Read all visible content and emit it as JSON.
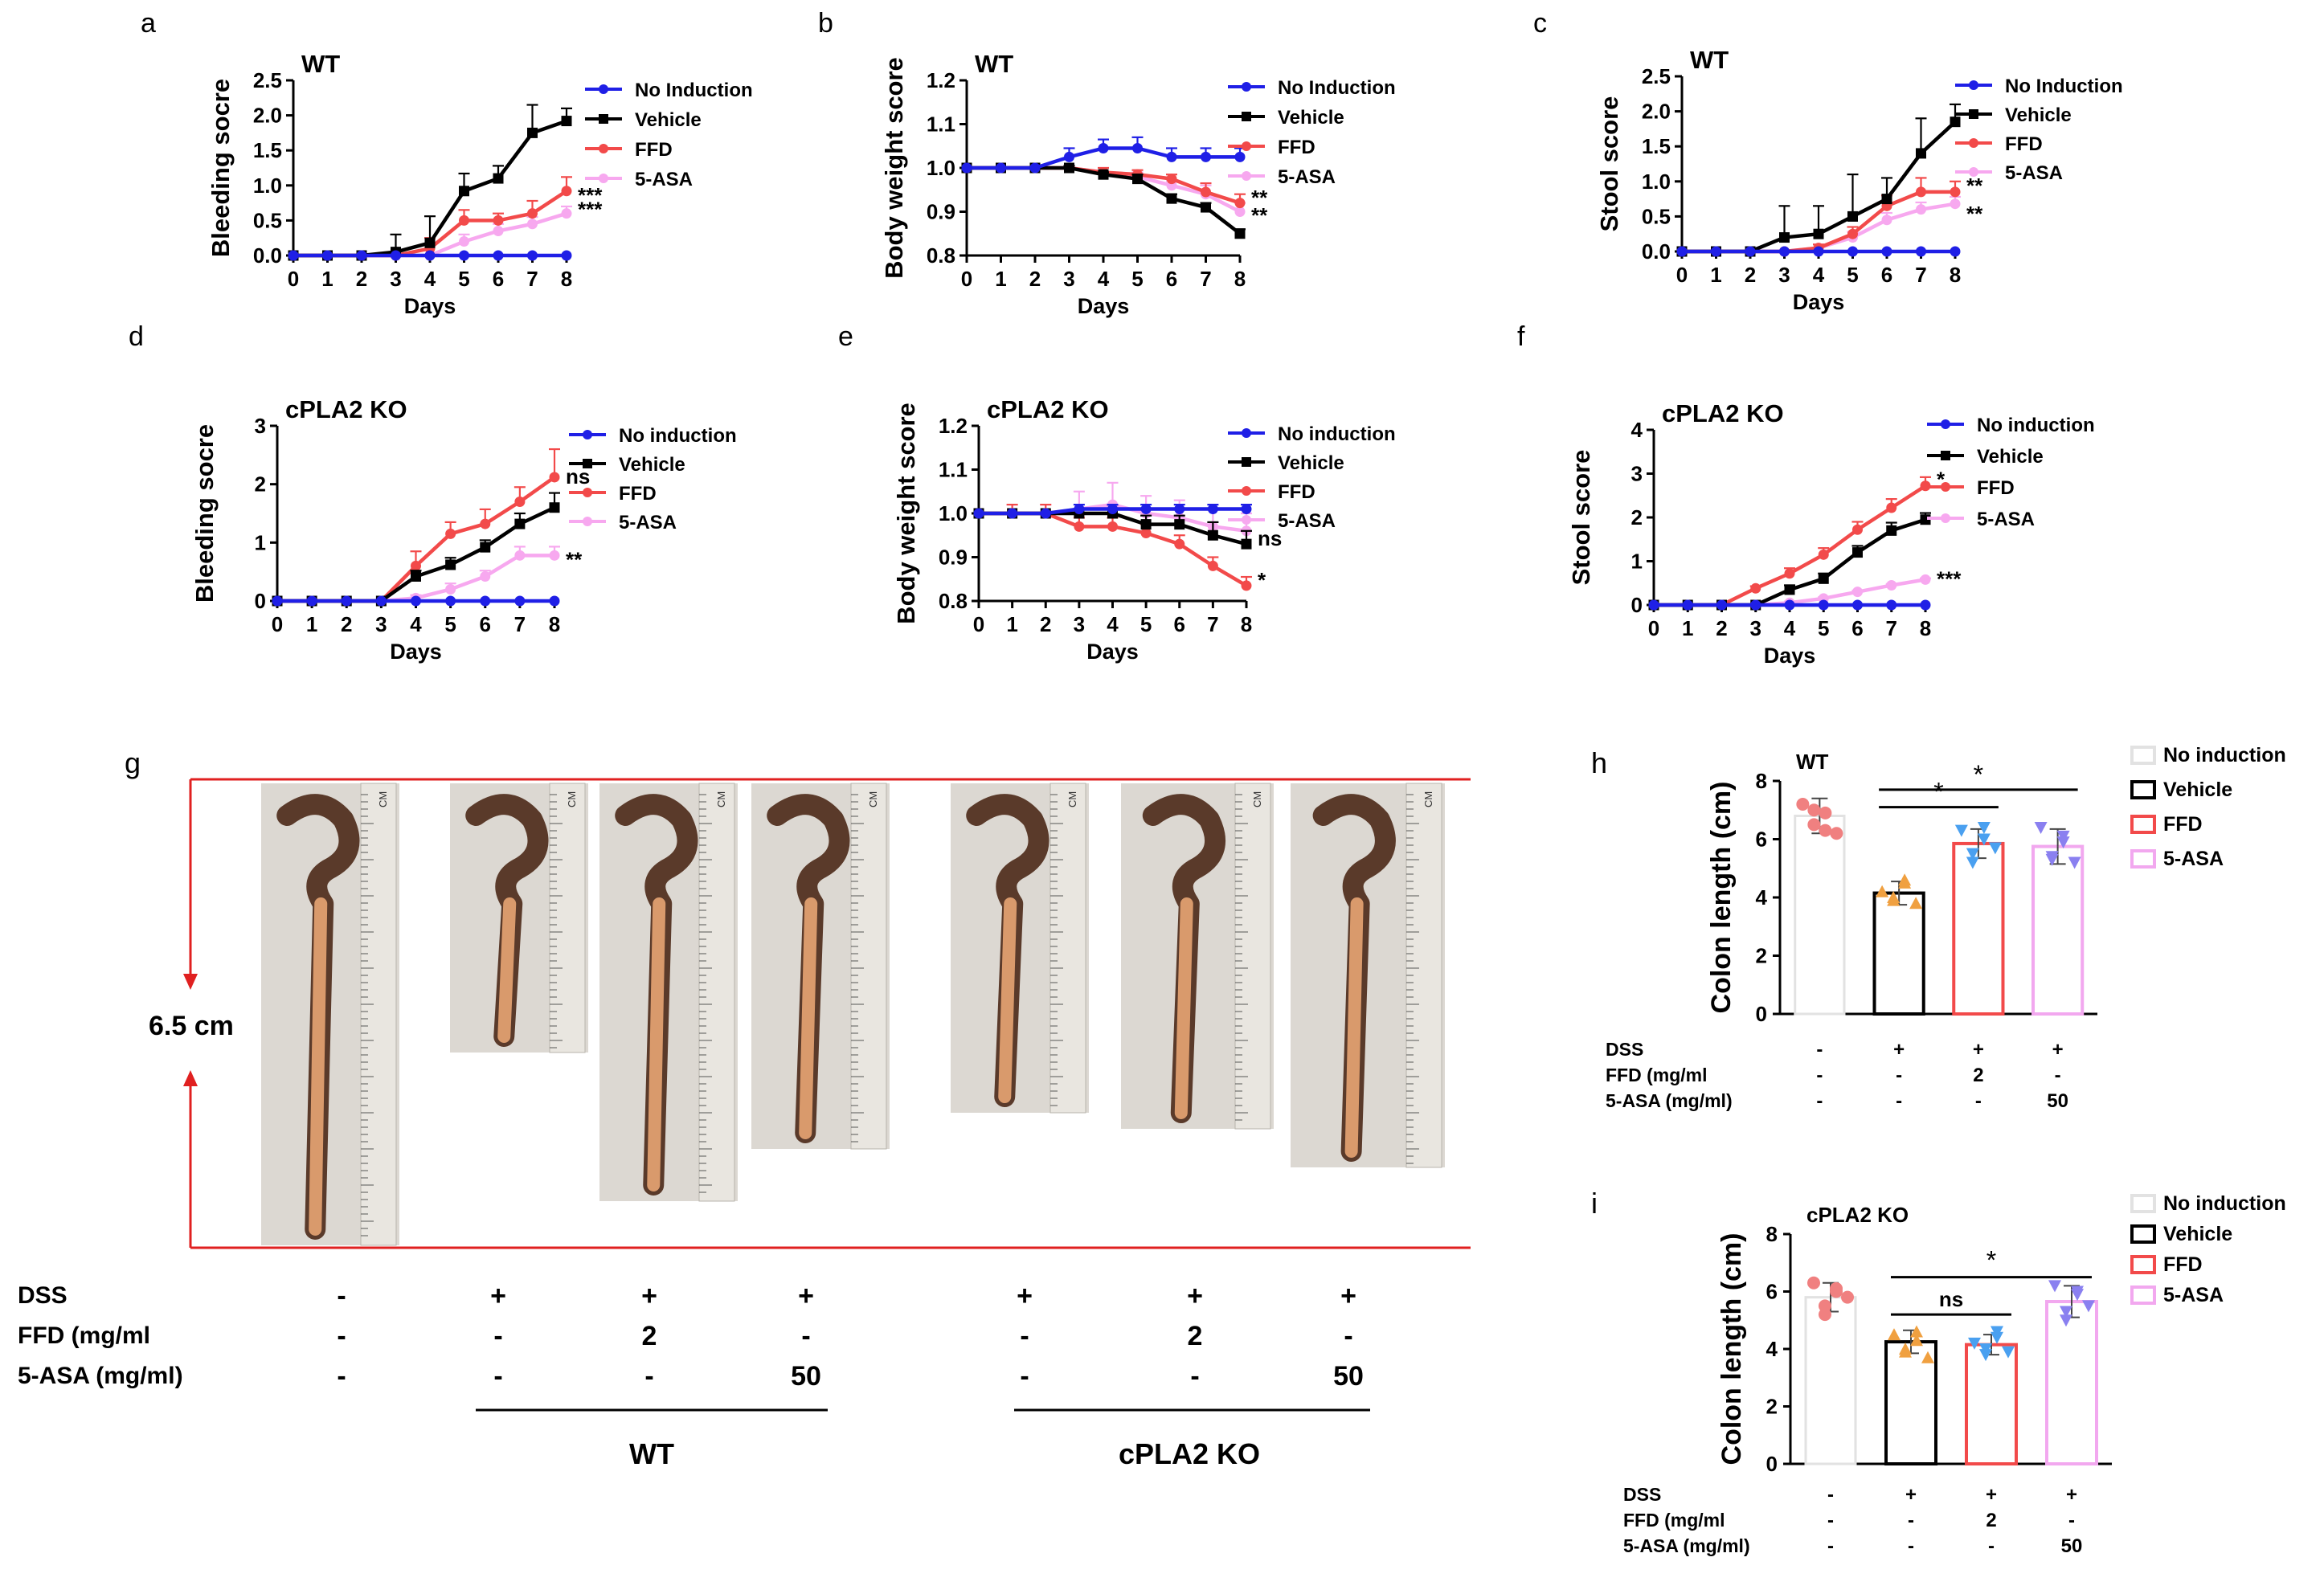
{
  "colors": {
    "no_induction": "#1f1fe6",
    "vehicle": "#000000",
    "ffd": "#f24a4a",
    "asa": "#f7a8ef",
    "red_guide": "#e02020",
    "bar_no_induction": "#e2e2e2",
    "bar_vehicle": "#000000",
    "bar_ffd": "#f24a4a",
    "bar_asa": "#f2a8ef",
    "dot_no_induction": "#f08080",
    "dot_vehicle": "#f0a040",
    "dot_ffd": "#4aa0f0",
    "dot_asa": "#8a80f0"
  },
  "chart_data": [
    {
      "panel": "a",
      "type": "line",
      "title": "WT",
      "xlabel": "Days",
      "ylabel": "Bleeding socre",
      "x": [
        0,
        1,
        2,
        3,
        4,
        5,
        6,
        7,
        8
      ],
      "xticks": [
        "0",
        "1",
        "2",
        "3",
        "4",
        "5",
        "6",
        "7",
        "8"
      ],
      "ylim": [
        0,
        2.5
      ],
      "yticks": [
        "0.0",
        "0.5",
        "1.0",
        "1.5",
        "2.0",
        "2.5"
      ],
      "series": [
        {
          "name": "No Induction",
          "color_key": "no_induction",
          "values": [
            0,
            0,
            0,
            0,
            0,
            0,
            0,
            0,
            0
          ],
          "err": [
            0,
            0,
            0,
            0,
            0,
            0,
            0,
            0,
            0
          ]
        },
        {
          "name": "Vehicle",
          "color_key": "vehicle",
          "values": [
            0,
            0,
            0,
            0.05,
            0.18,
            0.92,
            1.1,
            1.75,
            1.92
          ],
          "err": [
            0,
            0,
            0,
            0.25,
            0.38,
            0.25,
            0.18,
            0.4,
            0.18
          ]
        },
        {
          "name": "FFD",
          "color_key": "ffd",
          "values": [
            0,
            0,
            0,
            0,
            0.1,
            0.5,
            0.5,
            0.6,
            0.92
          ],
          "err": [
            0,
            0,
            0,
            0,
            0.15,
            0.15,
            0.1,
            0.18,
            0.2
          ]
        },
        {
          "name": "5-ASA",
          "color_key": "asa",
          "values": [
            0,
            0,
            0,
            0,
            0,
            0.2,
            0.35,
            0.45,
            0.6
          ],
          "err": [
            0,
            0,
            0,
            0,
            0,
            0.1,
            0.1,
            0.1,
            0.1
          ]
        }
      ],
      "annotations": [
        "***",
        "***"
      ]
    },
    {
      "panel": "b",
      "type": "line",
      "title": "WT",
      "xlabel": "Days",
      "ylabel": "Body weight score",
      "x": [
        0,
        1,
        2,
        3,
        4,
        5,
        6,
        7,
        8
      ],
      "xticks": [
        "0",
        "1",
        "2",
        "3",
        "4",
        "5",
        "6",
        "7",
        "8"
      ],
      "ylim": [
        0.8,
        1.2
      ],
      "yticks": [
        "0.8",
        "0.9",
        "1.0",
        "1.1",
        "1.2"
      ],
      "series": [
        {
          "name": "No Induction",
          "color_key": "no_induction",
          "values": [
            1.0,
            1.0,
            1.0,
            1.025,
            1.045,
            1.045,
            1.025,
            1.025,
            1.025
          ],
          "err": [
            0,
            0,
            0,
            0.02,
            0.02,
            0.025,
            0.02,
            0.02,
            0.02
          ]
        },
        {
          "name": "Vehicle",
          "color_key": "vehicle",
          "values": [
            1.0,
            1.0,
            1.0,
            1.0,
            0.985,
            0.975,
            0.93,
            0.91,
            0.85
          ],
          "err": [
            0,
            0,
            0,
            0.005,
            0.005,
            0.01,
            0.01,
            0.01,
            0.01
          ]
        },
        {
          "name": "FFD",
          "color_key": "ffd",
          "values": [
            1.0,
            1.0,
            1.0,
            1.0,
            0.99,
            0.985,
            0.975,
            0.945,
            0.92
          ],
          "err": [
            0,
            0,
            0,
            0.005,
            0.01,
            0.01,
            0.01,
            0.02,
            0.02
          ]
        },
        {
          "name": "5-ASA",
          "color_key": "asa",
          "values": [
            1.0,
            1.0,
            1.0,
            1.0,
            0.99,
            0.98,
            0.96,
            0.94,
            0.9
          ],
          "err": [
            0,
            0,
            0,
            0.005,
            0.01,
            0.01,
            0.01,
            0.02,
            0.02
          ]
        }
      ],
      "annotations": [
        "**",
        "**"
      ]
    },
    {
      "panel": "c",
      "type": "line",
      "title": "WT",
      "xlabel": "Days",
      "ylabel": "Stool score",
      "x": [
        0,
        1,
        2,
        3,
        4,
        5,
        6,
        7,
        8
      ],
      "xticks": [
        "0",
        "1",
        "2",
        "3",
        "4",
        "5",
        "6",
        "7",
        "8"
      ],
      "ylim": [
        0,
        2.5
      ],
      "yticks": [
        "0.0",
        "0.5",
        "1.0",
        "1.5",
        "2.0",
        "2.5"
      ],
      "series": [
        {
          "name": "No Induction",
          "color_key": "no_induction",
          "values": [
            0,
            0,
            0,
            0,
            0,
            0,
            0,
            0,
            0
          ],
          "err": [
            0,
            0,
            0,
            0,
            0,
            0,
            0,
            0,
            0
          ]
        },
        {
          "name": "Vehicle",
          "color_key": "vehicle",
          "values": [
            0,
            0,
            0,
            0.2,
            0.25,
            0.5,
            0.75,
            1.4,
            1.85
          ],
          "err": [
            0,
            0,
            0,
            0.45,
            0.4,
            0.6,
            0.3,
            0.5,
            0.25
          ]
        },
        {
          "name": "FFD",
          "color_key": "ffd",
          "values": [
            0,
            0,
            0,
            0,
            0.05,
            0.25,
            0.65,
            0.85,
            0.85
          ],
          "err": [
            0,
            0,
            0,
            0,
            0.05,
            0.1,
            0.15,
            0.2,
            0.15
          ]
        },
        {
          "name": "5-ASA",
          "color_key": "asa",
          "values": [
            0,
            0,
            0,
            0,
            0.05,
            0.2,
            0.45,
            0.6,
            0.68
          ],
          "err": [
            0,
            0,
            0,
            0,
            0.05,
            0.08,
            0.1,
            0.1,
            0.1
          ]
        }
      ],
      "annotations": [
        "**",
        "**"
      ]
    },
    {
      "panel": "d",
      "type": "line",
      "title": "cPLA2 KO",
      "xlabel": "Days",
      "ylabel": "Bleeding socre",
      "x": [
        0,
        1,
        2,
        3,
        4,
        5,
        6,
        7,
        8
      ],
      "xticks": [
        "0",
        "1",
        "2",
        "3",
        "4",
        "5",
        "6",
        "7",
        "8"
      ],
      "ylim": [
        0,
        3
      ],
      "yticks": [
        "0",
        "1",
        "2",
        "3"
      ],
      "series": [
        {
          "name": "No induction",
          "color_key": "no_induction",
          "values": [
            0,
            0,
            0,
            0,
            0,
            0,
            0,
            0,
            0
          ],
          "err": [
            0,
            0,
            0,
            0,
            0,
            0,
            0,
            0,
            0
          ]
        },
        {
          "name": "Vehicle",
          "color_key": "vehicle",
          "values": [
            0,
            0,
            0,
            0,
            0.42,
            0.62,
            0.92,
            1.32,
            1.6
          ],
          "err": [
            0,
            0,
            0,
            0,
            0.1,
            0.12,
            0.12,
            0.18,
            0.25
          ]
        },
        {
          "name": "FFD",
          "color_key": "ffd",
          "values": [
            0,
            0,
            0,
            0,
            0.6,
            1.15,
            1.32,
            1.7,
            2.12
          ],
          "err": [
            0,
            0,
            0,
            0,
            0.25,
            0.2,
            0.25,
            0.25,
            0.48
          ]
        },
        {
          "name": "5-ASA",
          "color_key": "asa",
          "values": [
            0,
            0,
            0,
            0,
            0.05,
            0.2,
            0.42,
            0.78,
            0.78
          ],
          "err": [
            0,
            0,
            0,
            0,
            0.05,
            0.1,
            0.1,
            0.15,
            0.15
          ]
        }
      ],
      "annotations": [
        "ns",
        "**"
      ]
    },
    {
      "panel": "e",
      "type": "line",
      "title": "cPLA2 KO",
      "xlabel": "Days",
      "ylabel": "Body weight score",
      "x": [
        0,
        1,
        2,
        3,
        4,
        5,
        6,
        7,
        8
      ],
      "xticks": [
        "0",
        "1",
        "2",
        "3",
        "4",
        "5",
        "6",
        "7",
        "8"
      ],
      "ylim": [
        0.8,
        1.2
      ],
      "yticks": [
        "0.8",
        "0.9",
        "1.0",
        "1.1",
        "1.2"
      ],
      "series": [
        {
          "name": "No induction",
          "color_key": "no_induction",
          "values": [
            1.0,
            1.0,
            1.0,
            1.01,
            1.01,
            1.01,
            1.01,
            1.01,
            1.01
          ],
          "err": [
            0,
            0,
            0,
            0.01,
            0.01,
            0.01,
            0.01,
            0.01,
            0.01
          ]
        },
        {
          "name": "Vehicle",
          "color_key": "vehicle",
          "values": [
            1.0,
            1.0,
            1.0,
            1.0,
            1.0,
            0.975,
            0.975,
            0.95,
            0.93
          ],
          "err": [
            0,
            0,
            0,
            0.01,
            0.02,
            0.02,
            0.02,
            0.03,
            0.03
          ]
        },
        {
          "name": "FFD",
          "color_key": "ffd",
          "values": [
            1.0,
            1.0,
            1.0,
            0.97,
            0.97,
            0.955,
            0.93,
            0.88,
            0.835
          ],
          "err": [
            0,
            0.02,
            0.02,
            0.02,
            0.02,
            0.02,
            0.02,
            0.02,
            0.02
          ]
        },
        {
          "name": "5-ASA",
          "color_key": "asa",
          "values": [
            1.0,
            1.0,
            1.0,
            1.01,
            1.02,
            1.0,
            0.99,
            0.97,
            0.96
          ],
          "err": [
            0,
            0.02,
            0.02,
            0.04,
            0.05,
            0.04,
            0.04,
            0.04,
            0.04
          ]
        }
      ],
      "annotations": [
        "ns",
        "*"
      ]
    },
    {
      "panel": "f",
      "type": "line",
      "title": "cPLA2 KO",
      "xlabel": "Days",
      "ylabel": "Stool score",
      "x": [
        0,
        1,
        2,
        3,
        4,
        5,
        6,
        7,
        8
      ],
      "xticks": [
        "0",
        "1",
        "2",
        "3",
        "4",
        "5",
        "6",
        "7",
        "8"
      ],
      "ylim": [
        0,
        4
      ],
      "yticks": [
        "0",
        "1",
        "2",
        "3",
        "4"
      ],
      "series": [
        {
          "name": "No induction",
          "color_key": "no_induction",
          "values": [
            0,
            0,
            0,
            0,
            0,
            0,
            0,
            0,
            0
          ],
          "err": [
            0,
            0,
            0,
            0,
            0,
            0,
            0,
            0,
            0
          ]
        },
        {
          "name": "Vehicle",
          "color_key": "vehicle",
          "values": [
            0,
            0,
            0,
            0,
            0.35,
            0.6,
            1.2,
            1.7,
            1.95
          ],
          "err": [
            0,
            0,
            0,
            0,
            0.1,
            0.12,
            0.15,
            0.18,
            0.15
          ]
        },
        {
          "name": "FFD",
          "color_key": "ffd",
          "values": [
            0,
            0,
            0,
            0.38,
            0.72,
            1.15,
            1.72,
            2.22,
            2.72
          ],
          "err": [
            0,
            0,
            0,
            0.05,
            0.12,
            0.15,
            0.18,
            0.2,
            0.2
          ]
        },
        {
          "name": "5-ASA",
          "color_key": "asa",
          "values": [
            0,
            0,
            0,
            0,
            0.05,
            0.15,
            0.3,
            0.45,
            0.58
          ],
          "err": [
            0,
            0,
            0,
            0,
            0.03,
            0.03,
            0.03,
            0.03,
            0.03
          ]
        }
      ],
      "annotations": [
        "*",
        "***"
      ]
    },
    {
      "panel": "h",
      "type": "bar",
      "title": "WT",
      "ylabel": "Colon length (cm)",
      "categories": [
        "No induction",
        "Vehicle",
        "FFD",
        "5-ASA"
      ],
      "values": [
        6.8,
        4.15,
        5.85,
        5.75
      ],
      "err": [
        0.6,
        0.4,
        0.5,
        0.6
      ],
      "points": [
        [
          7.2,
          6.5,
          6.3,
          7.0,
          6.9,
          6.2
        ],
        [
          4.2,
          3.9,
          4.5,
          4.0,
          4.6,
          3.8
        ],
        [
          6.3,
          5.5,
          6.0,
          5.2,
          6.4,
          5.7
        ],
        [
          6.4,
          5.3,
          5.9,
          5.4,
          6.1,
          5.2
        ]
      ],
      "ylim": [
        0,
        8
      ],
      "yticks": [
        "0",
        "2",
        "4",
        "6",
        "8"
      ],
      "significance": [
        "*",
        "*"
      ],
      "conditions": [
        {
          "label": "DSS",
          "values": [
            "-",
            "+",
            "+",
            "+"
          ]
        },
        {
          "label": "FFD (mg/ml",
          "values": [
            "-",
            "-",
            "2",
            "-"
          ]
        },
        {
          "label": "5-ASA (mg/ml)",
          "values": [
            "-",
            "-",
            "-",
            "50"
          ]
        }
      ]
    },
    {
      "panel": "i",
      "type": "bar",
      "title": "cPLA2 KO",
      "ylabel": "Colon length (cm)",
      "categories": [
        "No induction",
        "Vehicle",
        "FFD",
        "5-ASA"
      ],
      "values": [
        5.8,
        4.25,
        4.15,
        5.65
      ],
      "err": [
        0.5,
        0.4,
        0.35,
        0.55
      ],
      "points": [
        [
          6.3,
          5.5,
          6.0,
          5.2,
          6.1,
          5.8
        ],
        [
          4.5,
          3.9,
          4.6,
          4.0,
          4.3,
          3.7
        ],
        [
          4.2,
          3.8,
          4.6,
          4.0,
          4.4,
          3.9
        ],
        [
          6.2,
          5.3,
          5.9,
          5.0,
          6.0,
          5.5
        ]
      ],
      "ylim": [
        0,
        8
      ],
      "yticks": [
        "0",
        "2",
        "4",
        "6",
        "8"
      ],
      "significance": [
        "ns",
        "*"
      ],
      "conditions": [
        {
          "label": "DSS",
          "values": [
            "-",
            "+",
            "+",
            "+"
          ]
        },
        {
          "label": "FFD (mg/ml",
          "values": [
            "-",
            "-",
            "2",
            "-"
          ]
        },
        {
          "label": "5-ASA (mg/ml)",
          "values": [
            "-",
            "-",
            "-",
            "50"
          ]
        }
      ]
    }
  ],
  "photo_panel": {
    "letter": "g",
    "length_label": "6.5 cm",
    "ruler_label": "CM",
    "conditions": [
      {
        "label": "DSS",
        "values": [
          "-",
          "+",
          "+",
          "+",
          "+",
          "+",
          "+"
        ]
      },
      {
        "label": "FFD (mg/ml",
        "values": [
          "-",
          "-",
          "2",
          "-",
          "-",
          "2",
          "-"
        ]
      },
      {
        "label": "5-ASA (mg/ml)",
        "values": [
          "-",
          "-",
          "-",
          "50",
          "-",
          "-",
          "50"
        ]
      }
    ],
    "groups": [
      {
        "label": "WT"
      },
      {
        "label": "cPLA2 KO"
      }
    ]
  }
}
